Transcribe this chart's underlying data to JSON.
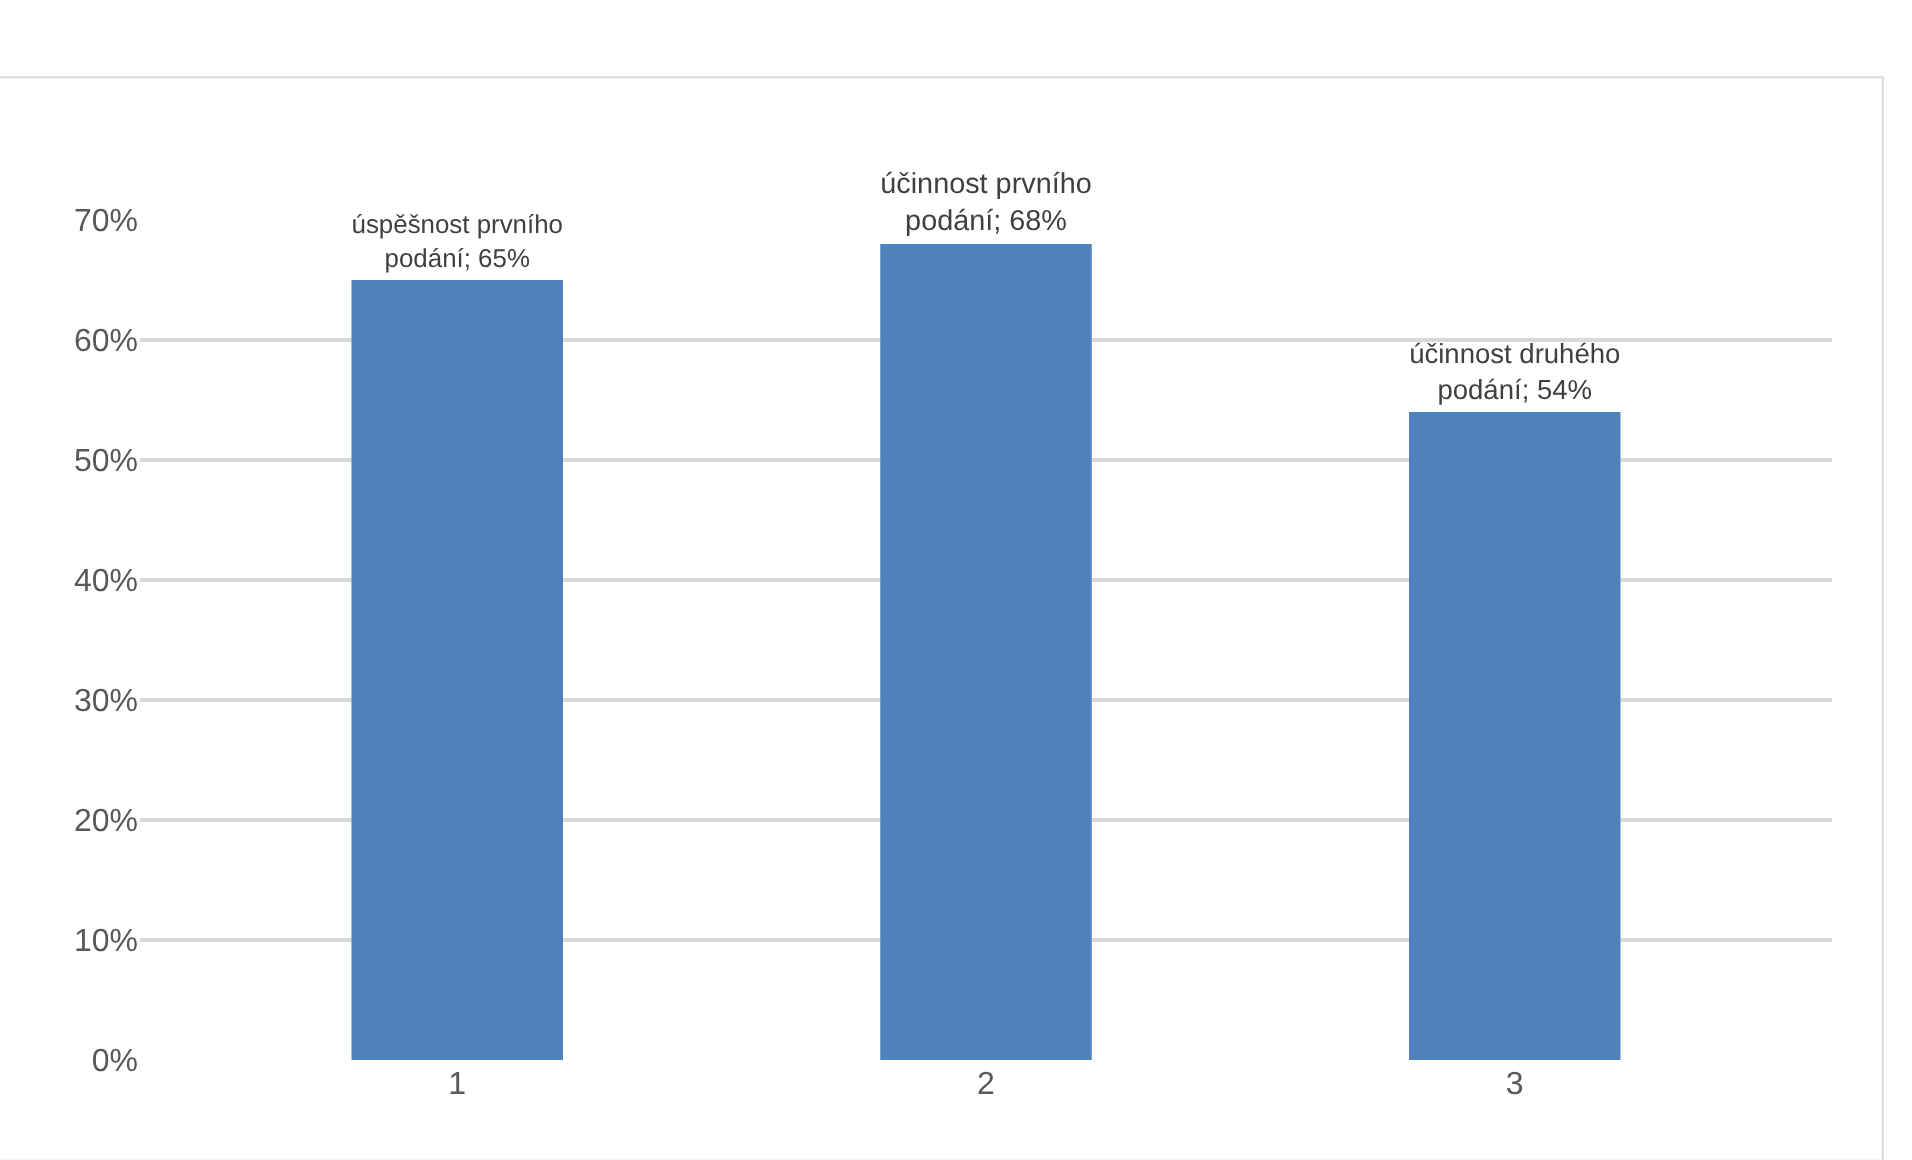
{
  "chart_data": {
    "type": "bar",
    "categories": [
      "1",
      "2",
      "3"
    ],
    "values": [
      65,
      68,
      54
    ],
    "color": "#4f81bd",
    "value_labels": [
      "úspěšnost prvního podání; 65%",
      "účinnost prvního podání; 68%",
      "účinnost druhého podání; 54%"
    ],
    "ylim": [
      0,
      70
    ],
    "yticks": [
      {
        "value": 0,
        "label": "0%"
      },
      {
        "value": 10,
        "label": "10%"
      },
      {
        "value": 20,
        "label": "20%"
      },
      {
        "value": 30,
        "label": "30%"
      },
      {
        "value": 40,
        "label": "40%"
      },
      {
        "value": 50,
        "label": "50%"
      },
      {
        "value": 60,
        "label": "60%"
      },
      {
        "value": 70,
        "label": "70%"
      }
    ],
    "grid": "y"
  }
}
